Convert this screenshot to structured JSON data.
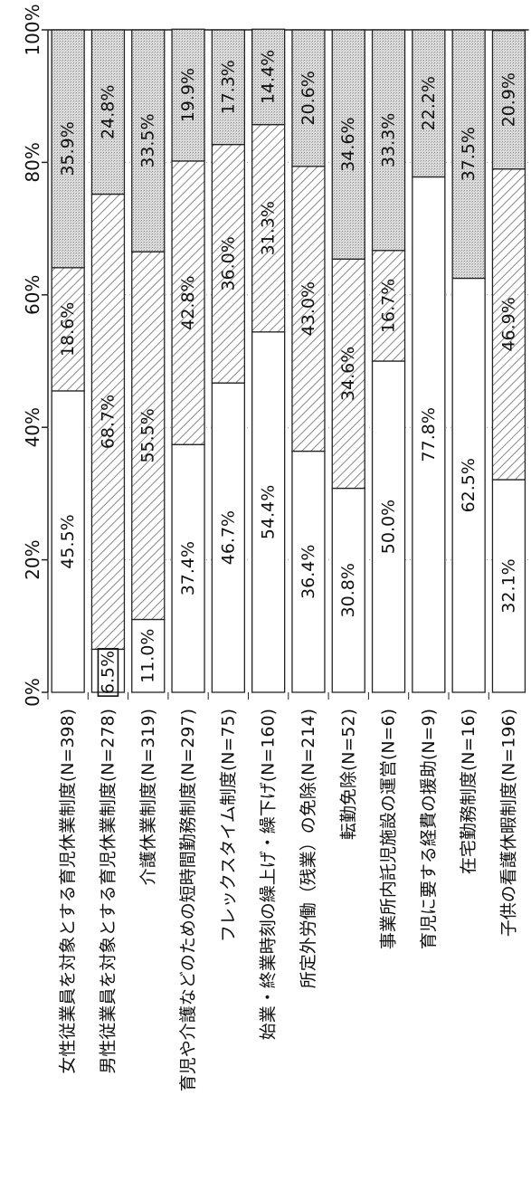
{
  "chart_data": {
    "type": "bar",
    "orientation": "horizontal",
    "stacked": true,
    "ylim": [
      0,
      100
    ],
    "tick_labels": [
      "0%",
      "20%",
      "40%",
      "60%",
      "80%",
      "100%"
    ],
    "categories": [
      "女性従業員を対象とする育児休業制度(N=398)",
      "男性従業員を対象とする育児休業制度(N=278)",
      "介護休業制度(N=319)",
      "育児や介護などのための短時間勤務制度(N=297)",
      "フレックスタイム制度(N=75)",
      "始業・終業時刻の繰上げ・繰下げ(N=160)",
      "所定外労働（残業）の免除(N=214)",
      "転勤免除(N=52)",
      "事業所内託児施設の運営(N=6)",
      "育児に要する経費の援助(N=9)",
      "在宅勤務制度(N=16)",
      "子供の看護休暇制度(N=196)"
    ],
    "series": [
      {
        "values": [
          45.5,
          6.5,
          11.0,
          37.4,
          46.7,
          54.4,
          36.4,
          30.8,
          50.0,
          77.8,
          62.5,
          32.1
        ]
      },
      {
        "values": [
          18.6,
          68.7,
          55.5,
          42.8,
          36.0,
          31.3,
          43.0,
          34.6,
          16.7,
          0,
          0,
          46.9
        ]
      },
      {
        "values": [
          35.9,
          24.8,
          33.5,
          19.9,
          17.3,
          14.4,
          20.6,
          34.6,
          33.3,
          22.2,
          37.5,
          20.9
        ]
      }
    ],
    "labels": [
      [
        "45.5%",
        "18.6%",
        "35.9%"
      ],
      [
        "6.5%",
        "68.7%",
        "24.8%"
      ],
      [
        "11.0%",
        "55.5%",
        "33.5%"
      ],
      [
        "37.4%",
        "42.8%",
        "19.9%"
      ],
      [
        "46.7%",
        "36.0%",
        "17.3%"
      ],
      [
        "54.4%",
        "31.3%",
        "14.4%"
      ],
      [
        "36.4%",
        "43.0%",
        "20.6%"
      ],
      [
        "30.8%",
        "34.6%",
        "34.6%"
      ],
      [
        "50.0%",
        "16.7%",
        "33.3%"
      ],
      [
        "77.8%",
        "",
        "22.2%"
      ],
      [
        "62.5%",
        "",
        "37.5%"
      ],
      [
        "32.1%",
        "46.9%",
        "20.9%"
      ]
    ],
    "colors": {
      "series1": "#ffffff",
      "series2_hatch": "#555555",
      "series3_dots": "#d0d0d0",
      "border": "#222222"
    },
    "grid": true,
    "legend": "none"
  }
}
